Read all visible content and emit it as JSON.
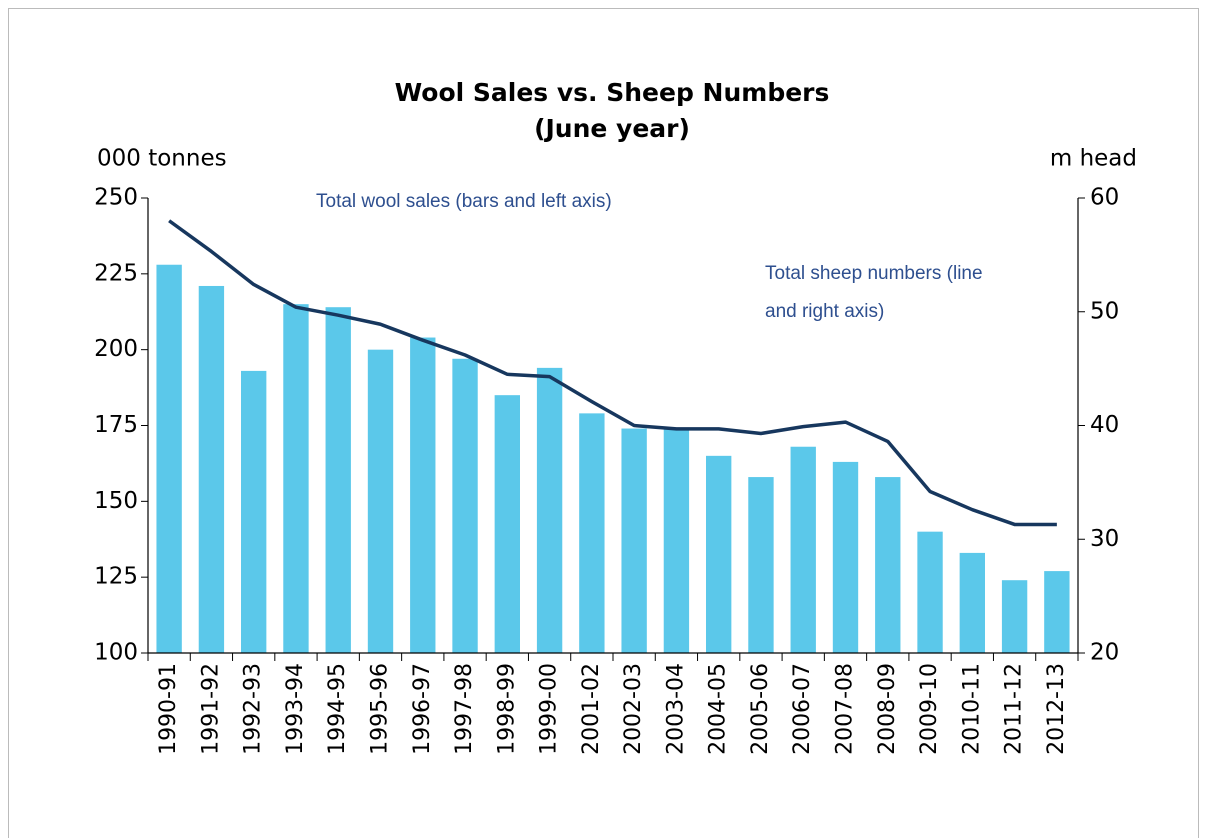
{
  "chart_data": {
    "type": "bar_line",
    "title": "Wool Sales vs. Sheep Numbers",
    "subtitle": "(June year)",
    "y_label": "000 tonnes",
    "y2_label": "m head",
    "annotations": [
      "Total wool sales (bars and left axis)",
      "Total sheep numbers (line",
      "and right axis)"
    ],
    "categories": [
      "1990-91",
      "1991-92",
      "1992-93",
      "1993-94",
      "1994-95",
      "1995-96",
      "1996-97",
      "1997-98",
      "1998-99",
      "1999-00",
      "2001-02",
      "2002-03",
      "2003-04",
      "2004-05",
      "2005-06",
      "2006-07",
      "2007-08",
      "2008-09",
      "2009-10",
      "2010-11",
      "2011-12",
      "2012-13"
    ],
    "series": [
      {
        "name": "Total wool sales",
        "type": "bar",
        "color": "#5bc8ea",
        "values": [
          228,
          221,
          193,
          215,
          214,
          200,
          204,
          197,
          185,
          194,
          179,
          174,
          174,
          165,
          158,
          168,
          163,
          158,
          140,
          133,
          124,
          127
        ]
      },
      {
        "name": "Total sheep numbers",
        "type": "line",
        "axis": "y2",
        "color": "#17375e",
        "values": [
          58,
          55.3,
          52.4,
          50.4,
          49.7,
          48.9,
          47.5,
          46.2,
          44.5,
          44.3,
          42.1,
          40.0,
          39.7,
          39.7,
          39.3,
          39.9,
          40.3,
          38.6,
          34.2,
          32.6,
          31.3,
          31.3
        ]
      }
    ],
    "ylim": [
      100,
      250
    ],
    "yticks": [
      100,
      125,
      150,
      175,
      200,
      225,
      250
    ],
    "y2lim": [
      20,
      60
    ],
    "y2ticks": [
      20,
      30,
      40,
      50,
      60
    ]
  }
}
